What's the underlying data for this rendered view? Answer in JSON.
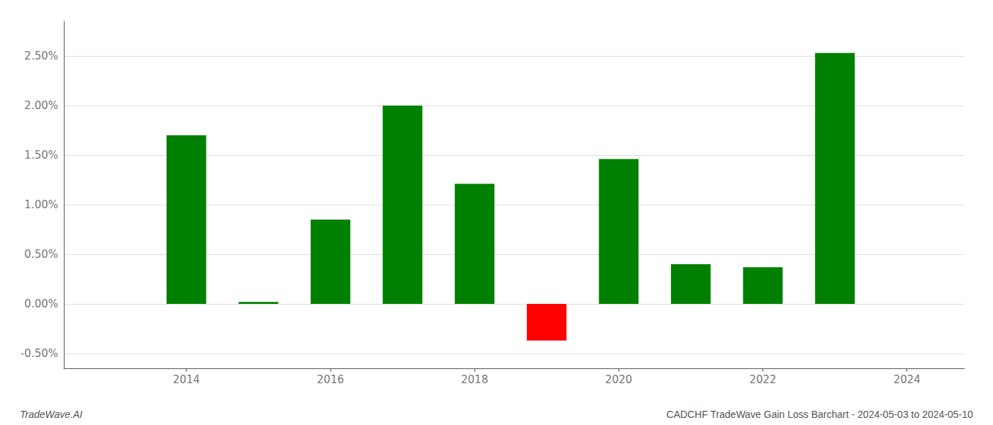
{
  "chart_data": {
    "type": "bar",
    "title": "CADCHF TradeWave Gain Loss Barchart - 2024-05-03 to 2024-05-10",
    "annotations": [
      "TradeWave.AI"
    ],
    "x": [
      2014,
      2015,
      2016,
      2017,
      2018,
      2019,
      2020,
      2021,
      2022,
      2023
    ],
    "values": [
      1.7,
      0.02,
      0.85,
      2.0,
      1.21,
      -0.37,
      1.46,
      0.4,
      0.37,
      2.53
    ],
    "colors": [
      "#008000",
      "#008000",
      "#008000",
      "#008000",
      "#008000",
      "#ff0000",
      "#008000",
      "#008000",
      "#008000",
      "#008000"
    ],
    "xlim": [
      2012.3,
      2024.8
    ],
    "xticks": [
      2014,
      2016,
      2018,
      2020,
      2022,
      2024
    ],
    "ylim": [
      -0.65,
      2.85
    ],
    "yticks": [
      {
        "value": -0.5,
        "label": "-0.50%"
      },
      {
        "value": 0.0,
        "label": "0.00%"
      },
      {
        "value": 0.5,
        "label": "0.50%"
      },
      {
        "value": 1.0,
        "label": "1.00%"
      },
      {
        "value": 1.5,
        "label": "1.50%"
      },
      {
        "value": 2.0,
        "label": "2.00%"
      },
      {
        "value": 2.5,
        "label": "2.50%"
      }
    ],
    "grid": true
  }
}
